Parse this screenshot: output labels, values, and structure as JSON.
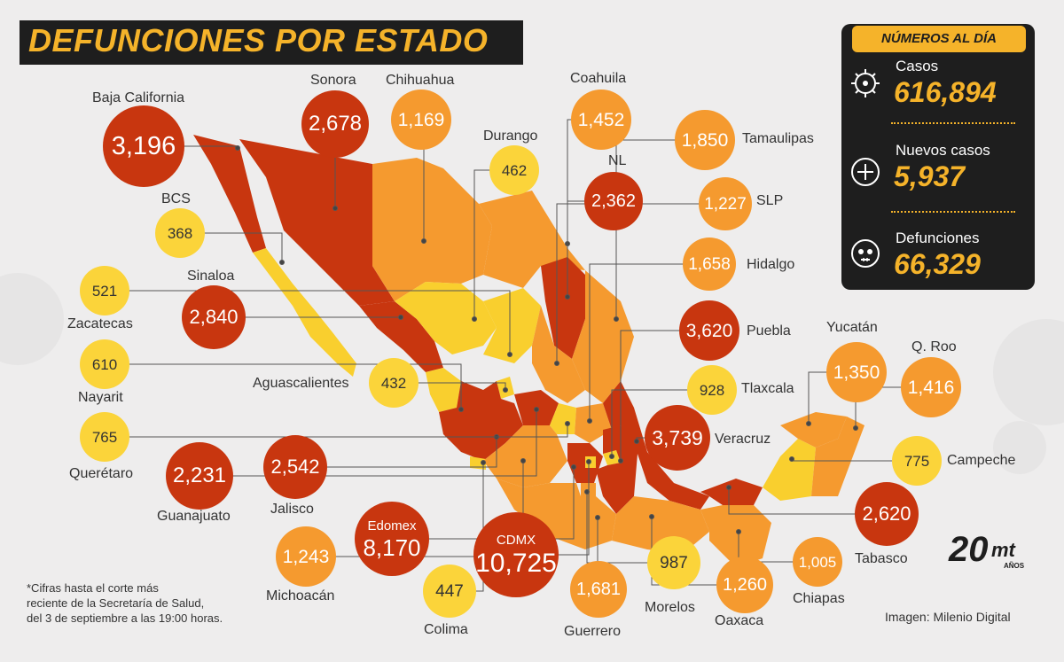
{
  "title": "DEFUNCIONES POR ESTADO",
  "panel": {
    "heading": "NÚMEROS AL DÍA",
    "stats": [
      {
        "label": "Casos",
        "value": "616,894",
        "icon": "virus-icon"
      },
      {
        "label": "Nuevos casos",
        "value": "5,937",
        "icon": "plus-circle-icon"
      },
      {
        "label": "Defunciones",
        "value": "66,329",
        "icon": "skull-icon"
      }
    ]
  },
  "states": [
    {
      "id": "baja-california",
      "name": "Baja California",
      "value": "3,196",
      "tone": "dark"
    },
    {
      "id": "sonora",
      "name": "Sonora",
      "value": "2,678",
      "tone": "dark"
    },
    {
      "id": "chihuahua",
      "name": "Chihuahua",
      "value": "1,169",
      "tone": "light"
    },
    {
      "id": "coahuila",
      "name": "Coahuila",
      "value": "1,452",
      "tone": "light"
    },
    {
      "id": "durango",
      "name": "Durango",
      "value": "462",
      "tone": "yellow"
    },
    {
      "id": "nl",
      "name": "NL",
      "value": "2,362",
      "tone": "dark"
    },
    {
      "id": "tamaulipas",
      "name": "Tamaulipas",
      "value": "1,850",
      "tone": "light"
    },
    {
      "id": "slp",
      "name": "SLP",
      "value": "1,227",
      "tone": "light"
    },
    {
      "id": "hidalgo",
      "name": "Hidalgo",
      "value": "1,658",
      "tone": "light"
    },
    {
      "id": "puebla",
      "name": "Puebla",
      "value": "3,620",
      "tone": "dark"
    },
    {
      "id": "tlaxcala",
      "name": "Tlaxcala",
      "value": "928",
      "tone": "yellow"
    },
    {
      "id": "veracruz",
      "name": "Veracruz",
      "value": "3,739",
      "tone": "dark"
    },
    {
      "id": "yucatan",
      "name": "Yucatán",
      "value": "1,350",
      "tone": "light"
    },
    {
      "id": "qroo",
      "name": "Q. Roo",
      "value": "1,416",
      "tone": "light"
    },
    {
      "id": "campeche",
      "name": "Campeche",
      "value": "775",
      "tone": "yellow"
    },
    {
      "id": "tabasco",
      "name": "Tabasco",
      "value": "2,620",
      "tone": "dark"
    },
    {
      "id": "chiapas",
      "name": "Chiapas",
      "value": "1,005",
      "tone": "light"
    },
    {
      "id": "oaxaca",
      "name": "Oaxaca",
      "value": "1,260",
      "tone": "light"
    },
    {
      "id": "morelos",
      "name": "Morelos",
      "value": "987",
      "tone": "yellow"
    },
    {
      "id": "guerrero",
      "name": "Guerrero",
      "value": "1,681",
      "tone": "light"
    },
    {
      "id": "cdmx",
      "name": "CDMX",
      "value": "10,725",
      "tone": "dark"
    },
    {
      "id": "edomex",
      "name": "Edomex",
      "value": "8,170",
      "tone": "dark"
    },
    {
      "id": "colima",
      "name": "Colima",
      "value": "447",
      "tone": "yellow"
    },
    {
      "id": "michoacan",
      "name": "Michoacán",
      "value": "1,243",
      "tone": "light"
    },
    {
      "id": "jalisco",
      "name": "Jalisco",
      "value": "2,542",
      "tone": "dark"
    },
    {
      "id": "guanajuato",
      "name": "Guanajuato",
      "value": "2,231",
      "tone": "dark"
    },
    {
      "id": "queretaro",
      "name": "Querétaro",
      "value": "765",
      "tone": "yellow"
    },
    {
      "id": "nayarit",
      "name": "Nayarit",
      "value": "610",
      "tone": "yellow"
    },
    {
      "id": "zacatecas",
      "name": "Zacatecas",
      "value": "521",
      "tone": "yellow"
    },
    {
      "id": "aguascalientes",
      "name": "Aguascalientes",
      "value": "432",
      "tone": "yellow"
    },
    {
      "id": "sinaloa",
      "name": "Sinaloa",
      "value": "2,840",
      "tone": "dark"
    },
    {
      "id": "bcs",
      "name": "BCS",
      "value": "368",
      "tone": "yellow"
    }
  ],
  "footnote": [
    "*Cifras hasta el corte más",
    "reciente de la Secretaría de Salud,",
    "del 3 de septiembre a las 19:00 horas."
  ],
  "credit": "Imagen: Milenio Digital",
  "logo": {
    "number": "20",
    "brand": "mt",
    "sub": "AÑOS"
  },
  "colors": {
    "dark": "#c8360f",
    "light": "#f59a2f",
    "yellow": "#fbd43a",
    "panel": "#1e1e1e",
    "accent": "#f5b32a",
    "map_dark": "#c8360f",
    "map_light": "#f59a2f",
    "map_yellow": "#f9cf2e"
  }
}
